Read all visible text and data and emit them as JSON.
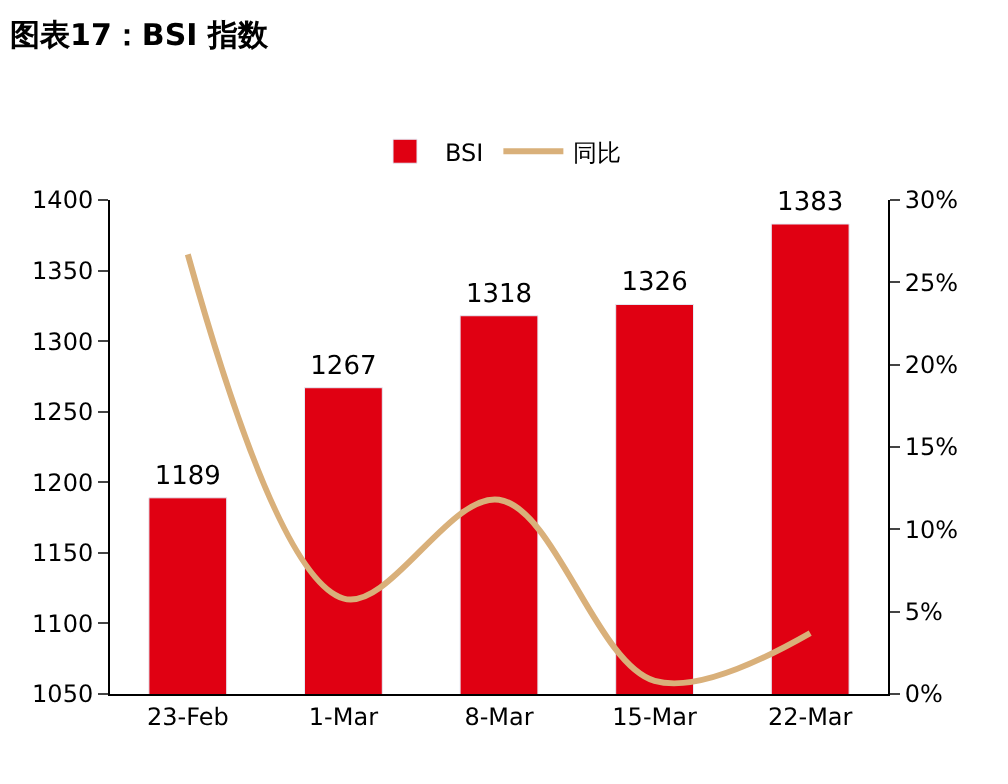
{
  "chart_data": {
    "type": "bar",
    "title": "图表17：BSI 指数",
    "categories": [
      "23-Feb",
      "1-Mar",
      "8-Mar",
      "15-Mar",
      "22-Mar"
    ],
    "series": [
      {
        "name": "BSI",
        "color": "#e00012",
        "values": [
          1189,
          1267,
          1318,
          1326,
          1383
        ],
        "value_labels": [
          "1189",
          "1267",
          "1318",
          "1326",
          "1383"
        ]
      },
      {
        "name": "同比",
        "type": "line",
        "axis": "y2",
        "color": "#d9b07a",
        "values": [
          26.7,
          5.8,
          11.8,
          0.8,
          3.7
        ]
      }
    ],
    "ylim": [
      1050,
      1400
    ],
    "yticks": [
      1050,
      1100,
      1150,
      1200,
      1250,
      1300,
      1350,
      1400
    ],
    "y2lim": [
      0,
      30
    ],
    "y2ticks": [
      {
        "value": 0,
        "label": "0%"
      },
      {
        "value": 5,
        "label": "5%"
      },
      {
        "value": 10,
        "label": "10%"
      },
      {
        "value": 15,
        "label": "15%"
      },
      {
        "value": 20,
        "label": "20%"
      },
      {
        "value": 25,
        "label": "25%"
      },
      {
        "value": 30,
        "label": "30%"
      }
    ],
    "legend": "top"
  }
}
